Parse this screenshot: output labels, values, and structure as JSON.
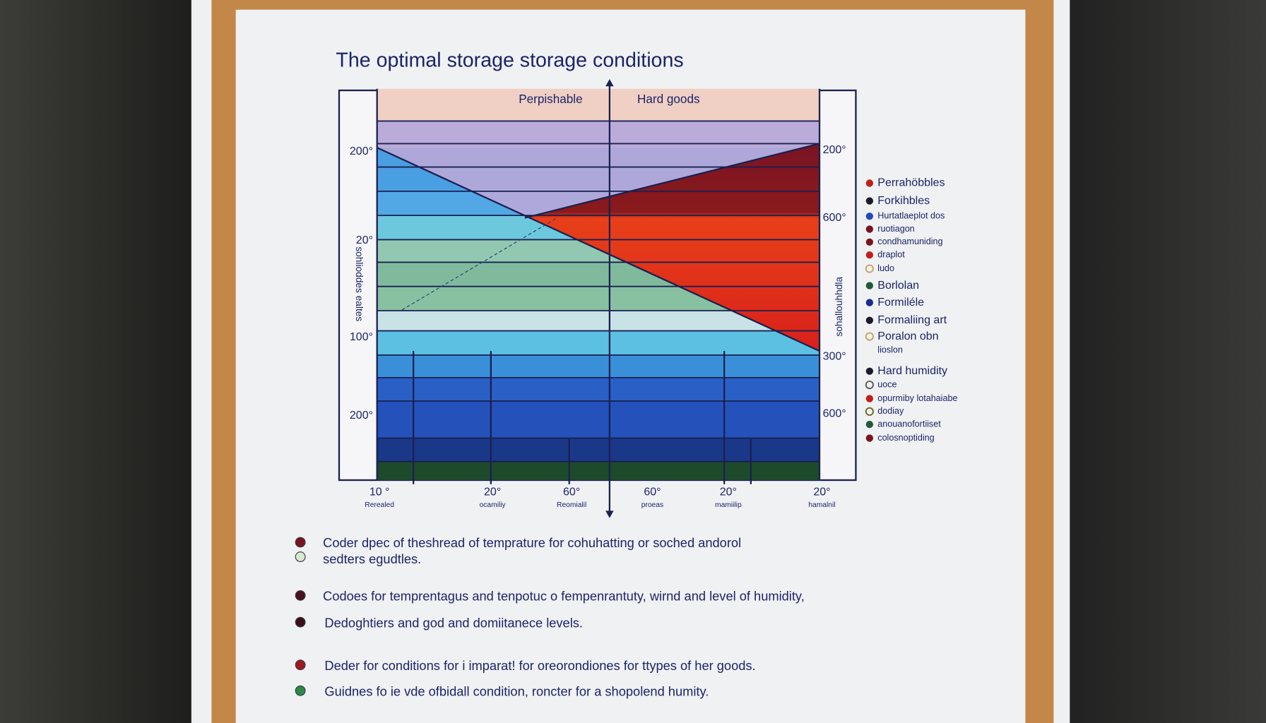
{
  "title": "The optimal  storage  storage conditions",
  "chart": {
    "header_labels": [
      "Perpishable",
      "Hard goods"
    ],
    "y_left_labels": [
      "200°",
      "20°",
      "100°",
      "200°"
    ],
    "y_right_labels": [
      "200°",
      "600°",
      "300°",
      "600°"
    ],
    "y_left_title": "sohlioddes ealtes",
    "y_right_title": "sohallouhhdla",
    "x_labels": [
      {
        "label": "10 °",
        "sub": "Rerealed"
      },
      {
        "label": "20°",
        "sub": "ocamiliy"
      },
      {
        "label": "60°",
        "sub": "Reomialil"
      },
      {
        "label": "60°",
        "sub": "proeas"
      },
      {
        "label": "20°",
        "sub": "mamiilip"
      },
      {
        "label": "20°",
        "sub": "hamalnil"
      }
    ]
  },
  "legend": [
    {
      "label": "Perrahöbbles",
      "color": "#c0201c"
    },
    {
      "label": "Forkihbles",
      "color": "#1a1a2a"
    },
    {
      "label": "Hurtatlaeplot dos",
      "color": "#2448c0"
    },
    {
      "label": "ruotiagon",
      "color": "#7a1420"
    },
    {
      "label": "condhamuniding",
      "color": "#7a1420"
    },
    {
      "label": "draplot",
      "color": "#c0201c"
    },
    {
      "label": "ludo",
      "color": "#c8a060",
      "hollow": true
    },
    {
      "label": "Borlolan",
      "color": "#1e5a3a"
    },
    {
      "label": "Formiléle",
      "color": "#1a2a90"
    },
    {
      "label": "Formaliing art",
      "color": "#1a1a2a"
    },
    {
      "label": "Poralon obn",
      "color": "#c8a060",
      "hollow": true
    },
    {
      "label": "lioslon"
    },
    {
      "label": "Hard humidity",
      "color": "#1a1a2a"
    },
    {
      "label": "uoce",
      "color": "#555555",
      "hollow": true
    },
    {
      "label": "opurmiby lotahaiabe",
      "color": "#c0201c"
    },
    {
      "label": "dodiay",
      "color": "#6a6020",
      "hollow": true
    },
    {
      "label": "anouanofortiiset",
      "color": "#1e5a3a"
    },
    {
      "label": "colosnoptiding",
      "color": "#7a1420"
    }
  ],
  "notes": [
    {
      "lines": [
        "Coder dpec of theshread of temprature  for cohuhatting or soched andorol",
        "sedters egudtles."
      ],
      "dots": [
        "#7a1420",
        "#d8e8d0"
      ]
    },
    {
      "lines": [
        "Codoes for temprentagus and tenpotuc o fempenrantuty, wirnd and level of humidity,"
      ],
      "dots": [
        "#4a1020"
      ]
    },
    {
      "lines": [
        "Dedoghtiers and god and domiitanece levels."
      ],
      "dots": [
        "#3a1018"
      ]
    },
    {
      "lines": [
        "Deder for conditions  for i imparat! for oreorondiones for ttypes of her goods."
      ],
      "dots": [
        "#a01820"
      ]
    },
    {
      "lines": [
        "Guidnes fo ie vde ofbidall condition, roncter for a shopolend humity."
      ],
      "dots": [
        "#2a8a4a"
      ]
    }
  ]
}
